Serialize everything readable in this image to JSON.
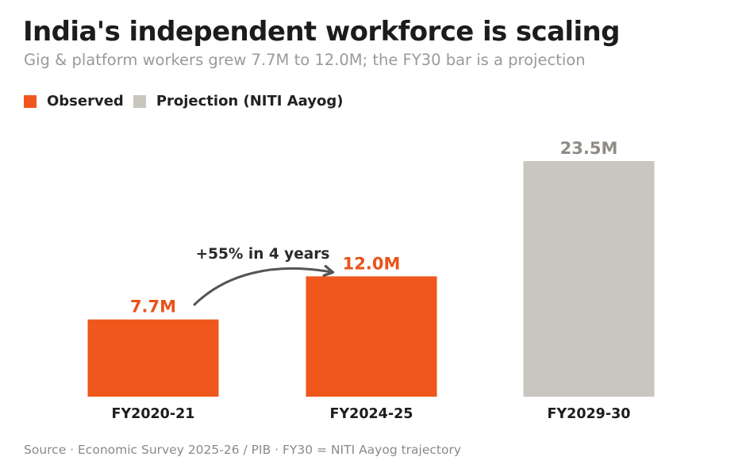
{
  "header": {
    "title": "India's independent workforce is scaling",
    "subtitle": "Gig & platform workers grew 7.7M to 12.0M; the FY30 bar is a projection"
  },
  "legend": {
    "items": [
      {
        "label": "Observed",
        "color": "#F0571C"
      },
      {
        "label": "Projection (NITI Aayog)",
        "color": "#C9C6BF"
      }
    ]
  },
  "chart_data": {
    "type": "bar",
    "title": "India's independent workforce is scaling",
    "subtitle": "Gig & platform workers grew 7.7M to 12.0M; the FY30 bar is a projection",
    "categories": [
      "FY2020-21",
      "FY2024-25",
      "FY2029-30"
    ],
    "values": [
      7.7,
      12.0,
      23.5
    ],
    "value_labels": [
      "7.7M",
      "12.0M",
      "23.5M"
    ],
    "unit": "M",
    "status": [
      "observed",
      "observed",
      "projection"
    ],
    "colors": {
      "observed": "#F0571C",
      "projection": "#C9C6BF",
      "observed_label": "#E8531A",
      "projection_label": "#8F8C86"
    },
    "xlabel": "",
    "ylabel": "",
    "ylim": [
      0,
      23.5
    ],
    "grid": false,
    "legend_position": "top-left",
    "annotations": [
      {
        "text": "+55% in 4 years",
        "from": "FY2020-21",
        "to": "FY2024-25"
      }
    ]
  },
  "footer": {
    "source": "Source · Economic Survey 2025-26 / PIB · FY30 = NITI Aayog trajectory"
  }
}
